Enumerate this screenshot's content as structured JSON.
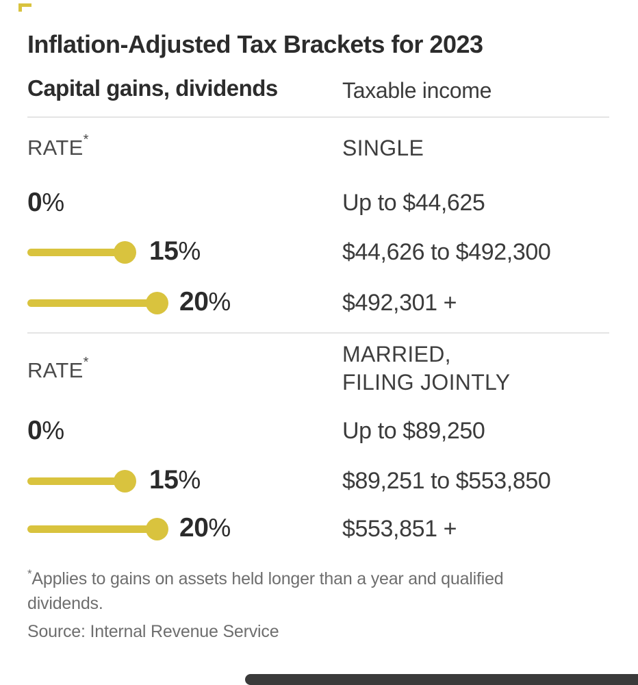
{
  "colors": {
    "accent": "#d9c33e",
    "text_dark": "#2c2c2c",
    "text_gray": "#6e6e6e"
  },
  "header": {
    "title": "Inflation-Adjusted Tax Brackets for 2023",
    "left_subtitle": "Capital gains, dividends",
    "right_subtitle": "Taxable income"
  },
  "sections": [
    {
      "rate_header": "RATE",
      "rate_note": "*",
      "status_line1": "SINGLE",
      "status_line2": "",
      "rows": [
        {
          "rate": "0",
          "pct": "%",
          "rate_value": 0,
          "income": "Up to $44,625"
        },
        {
          "rate": "15",
          "pct": "%",
          "rate_value": 15,
          "income": "$44,626 to $492,300"
        },
        {
          "rate": "20",
          "pct": "%",
          "rate_value": 20,
          "income": "$492,301 +"
        }
      ]
    },
    {
      "rate_header": "RATE",
      "rate_note": "*",
      "status_line1": "MARRIED,",
      "status_line2": "FILING JOINTLY",
      "rows": [
        {
          "rate": "0",
          "pct": "%",
          "rate_value": 0,
          "income": "Up to $89,250"
        },
        {
          "rate": "15",
          "pct": "%",
          "rate_value": 15,
          "income": "$89,251 to $553,850"
        },
        {
          "rate": "20",
          "pct": "%",
          "rate_value": 20,
          "income": "$553,851 +"
        }
      ]
    }
  ],
  "footnote": {
    "star": "*",
    "line1": "Applies to gains on assets held longer than a year and qualified",
    "line2": "dividends.",
    "source": "Source: Internal Revenue Service"
  },
  "chart_data": {
    "type": "bar",
    "title": "Inflation-Adjusted Tax Brackets for 2023",
    "subtitle_left": "Capital gains, dividends",
    "subtitle_right": "Taxable income",
    "legend_position": "none",
    "grid": false,
    "bar_encoding": "horizontal lollipop bar, length proportional to capital-gains rate (px per pct ~9.45), 0% has no bar",
    "bar_color": "#d9c33e",
    "groups": [
      {
        "filing_status": "SINGLE",
        "rows": [
          {
            "rate_pct": 0,
            "income_range": "Up to $44,625"
          },
          {
            "rate_pct": 15,
            "income_range": "$44,626 to $492,300"
          },
          {
            "rate_pct": 20,
            "income_range": "$492,301 +"
          }
        ]
      },
      {
        "filing_status": "MARRIED, FILING JOINTLY",
        "rows": [
          {
            "rate_pct": 0,
            "income_range": "Up to $89,250"
          },
          {
            "rate_pct": 15,
            "income_range": "$89,251 to $553,850"
          },
          {
            "rate_pct": 20,
            "income_range": "$553,851 +"
          }
        ]
      }
    ],
    "footnote": "*Applies to gains on assets held longer than a year and qualified dividends.",
    "source": "Source: Internal Revenue Service"
  }
}
